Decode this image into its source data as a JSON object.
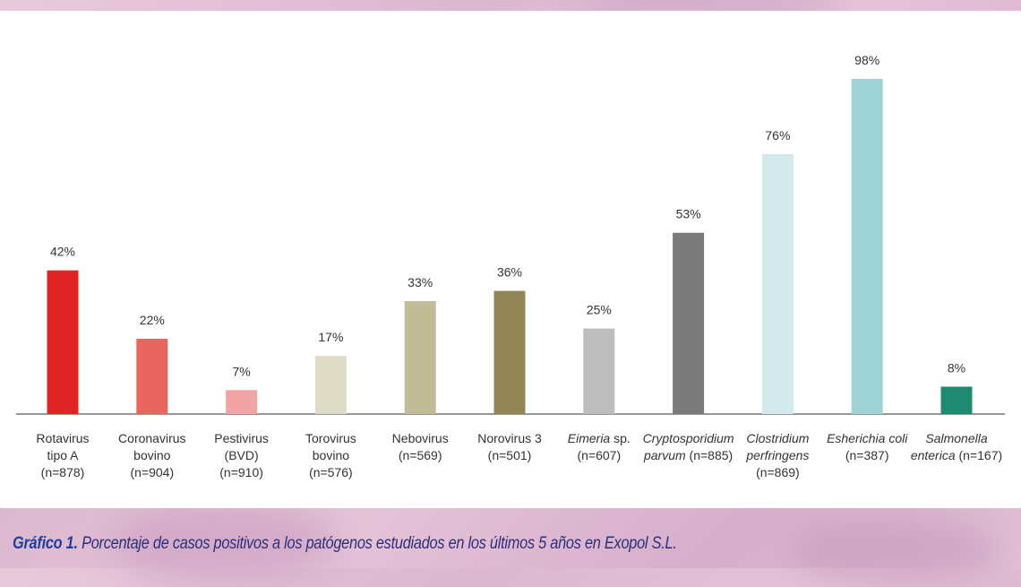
{
  "chart_data": {
    "type": "bar",
    "title": "",
    "xlabel": "",
    "ylabel": "",
    "ylim": [
      0,
      100
    ],
    "grid": false,
    "categories": [
      {
        "lines": [
          {
            "parts": [
              {
                "t": "Rotavirus",
                "i": false
              }
            ]
          },
          {
            "parts": [
              {
                "t": "tipo A",
                "i": false
              }
            ]
          },
          {
            "parts": [
              {
                "t": "(n=878)",
                "i": false
              }
            ]
          }
        ]
      },
      {
        "lines": [
          {
            "parts": [
              {
                "t": "Coronavirus",
                "i": false
              }
            ]
          },
          {
            "parts": [
              {
                "t": "bovino",
                "i": false
              }
            ]
          },
          {
            "parts": [
              {
                "t": "(n=904)",
                "i": false
              }
            ]
          }
        ]
      },
      {
        "lines": [
          {
            "parts": [
              {
                "t": "Pestivirus",
                "i": false
              }
            ]
          },
          {
            "parts": [
              {
                "t": "(BVD)",
                "i": false
              }
            ]
          },
          {
            "parts": [
              {
                "t": "(n=910)",
                "i": false
              }
            ]
          }
        ]
      },
      {
        "lines": [
          {
            "parts": [
              {
                "t": "Torovirus",
                "i": false
              }
            ]
          },
          {
            "parts": [
              {
                "t": "bovino",
                "i": false
              }
            ]
          },
          {
            "parts": [
              {
                "t": "(n=576)",
                "i": false
              }
            ]
          }
        ]
      },
      {
        "lines": [
          {
            "parts": [
              {
                "t": "Nebovirus",
                "i": false
              }
            ]
          },
          {
            "parts": [
              {
                "t": "(n=569)",
                "i": false
              }
            ]
          }
        ]
      },
      {
        "lines": [
          {
            "parts": [
              {
                "t": "Norovirus 3",
                "i": false
              }
            ]
          },
          {
            "parts": [
              {
                "t": "(n=501)",
                "i": false
              }
            ]
          }
        ]
      },
      {
        "lines": [
          {
            "parts": [
              {
                "t": "Eimeria",
                "i": true
              },
              {
                "t": " sp.",
                "i": false
              }
            ]
          },
          {
            "parts": [
              {
                "t": "(n=607)",
                "i": false
              }
            ]
          }
        ]
      },
      {
        "lines": [
          {
            "parts": [
              {
                "t": "Cryptosporidium",
                "i": true
              }
            ]
          },
          {
            "parts": [
              {
                "t": "parvum",
                "i": true
              },
              {
                "t": " (n=885)",
                "i": false
              }
            ]
          }
        ]
      },
      {
        "lines": [
          {
            "parts": [
              {
                "t": "Clostridium",
                "i": true
              }
            ]
          },
          {
            "parts": [
              {
                "t": "perfringens",
                "i": true
              }
            ]
          },
          {
            "parts": [
              {
                "t": "(n=869)",
                "i": false
              }
            ]
          }
        ]
      },
      {
        "lines": [
          {
            "parts": [
              {
                "t": "Esherichia coli",
                "i": true
              }
            ]
          },
          {
            "parts": [
              {
                "t": "(n=387)",
                "i": false
              }
            ]
          }
        ]
      },
      {
        "lines": [
          {
            "parts": [
              {
                "t": "Salmonella",
                "i": true
              }
            ]
          },
          {
            "parts": [
              {
                "t": "enterica",
                "i": true
              },
              {
                "t": " (n=167)",
                "i": false
              }
            ]
          }
        ]
      }
    ],
    "values": [
      42,
      22,
      7,
      17,
      33,
      36,
      25,
      53,
      76,
      98,
      8
    ],
    "value_labels": [
      "42%",
      "22%",
      "7%",
      "17%",
      "33%",
      "36%",
      "25%",
      "53%",
      "76%",
      "98%",
      "8%"
    ],
    "colors": [
      "#e02424",
      "#e8665f",
      "#f2a4a4",
      "#dedcc6",
      "#c2bb98",
      "#928657",
      "#bdbdbd",
      "#7a7a7a",
      "#d3e9ec",
      "#9dd3d4",
      "#1f8c72"
    ]
  },
  "caption": {
    "lead": "Gráfico 1.",
    "text": " Porcentaje de casos positivos a los patógenos estudiados en los últimos 5 años en Exopol S.L."
  }
}
